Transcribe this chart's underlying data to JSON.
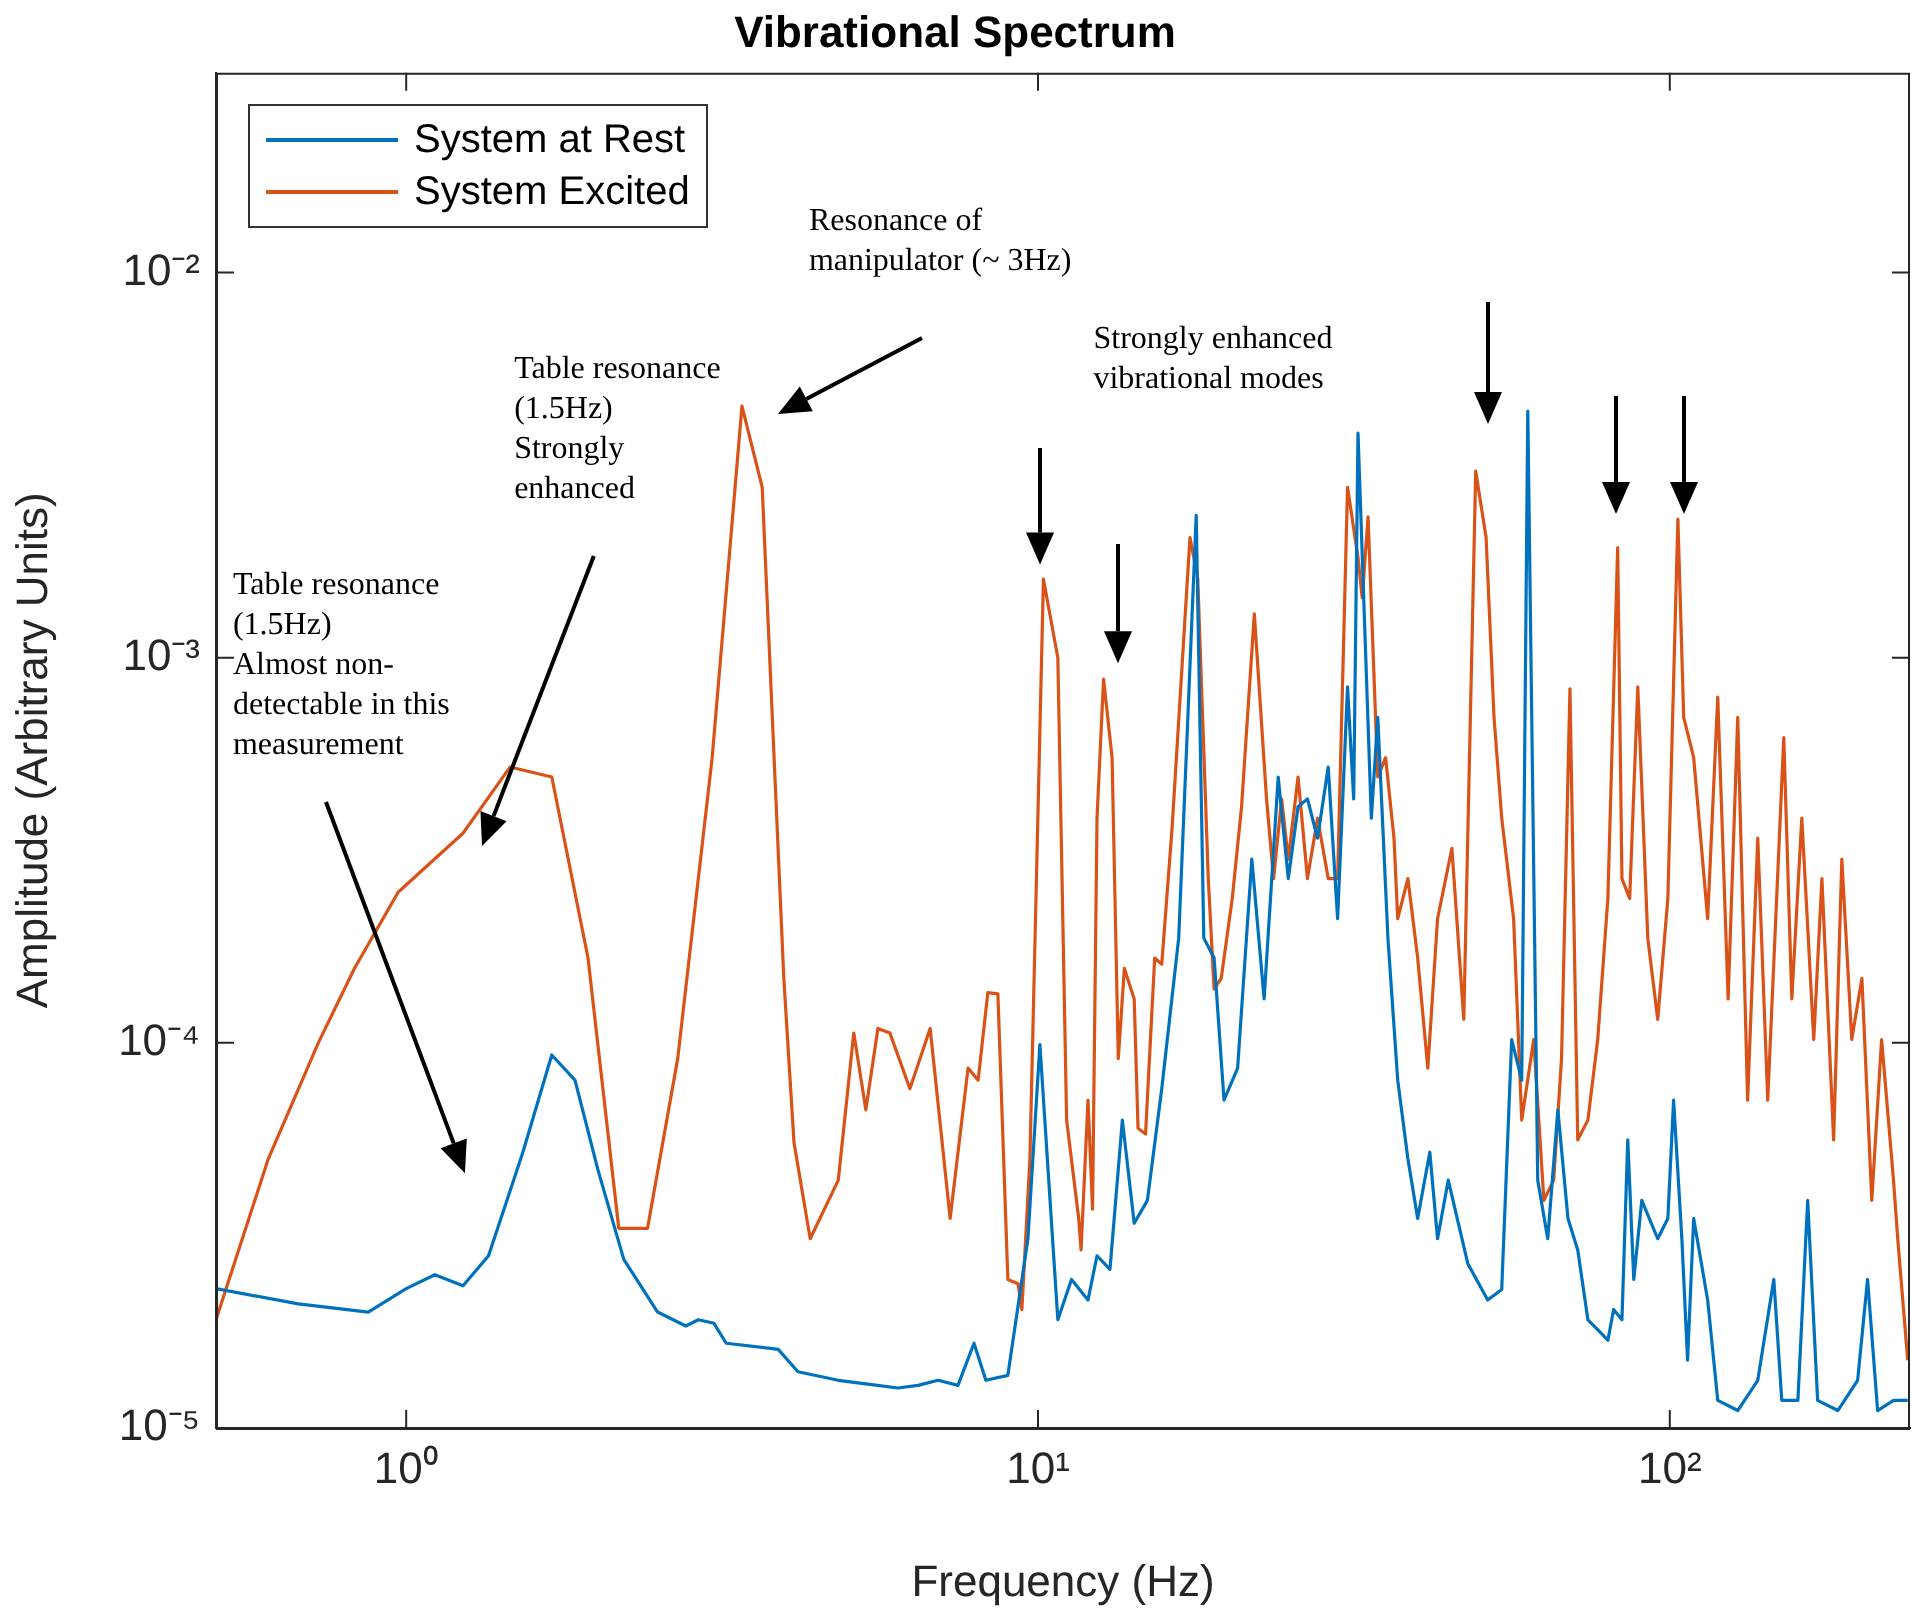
{
  "chart_data": {
    "type": "line",
    "title": "Vibrational Spectrum",
    "xlabel": "Frequency (Hz)",
    "ylabel": "Amplitude (Arbitrary Units)",
    "log": "xy",
    "grid": false,
    "legend": "top left",
    "marker": "none",
    "line_style": "solid",
    "xlim": [
      0.5,
      240
    ],
    "xticks": [
      {
        "value": 1,
        "label": "10⁰"
      },
      {
        "value": 10,
        "label": "10¹"
      },
      {
        "value": 100,
        "label": "10²"
      }
    ],
    "ylim": [
      1e-05,
      0.033
    ],
    "yticks": [
      {
        "value": 1e-05,
        "label": "10⁻⁵"
      },
      {
        "value": 0.0001,
        "label": "10⁻⁴"
      },
      {
        "value": 0.001,
        "label": "10⁻³"
      },
      {
        "value": 0.01,
        "label": "10⁻²"
      }
    ],
    "annotations": [
      "Table resonance\n(1.5Hz)\nAlmost non-\ndetectable in this\nmeasurement",
      "Table resonance\n(1.5Hz)\nStrongly\nenhanced",
      "Resonance of\nmanipulator (~ 3Hz)",
      "Strongly enhanced\nvibrational modes"
    ],
    "series": [
      {
        "name": "System at Rest",
        "color": "#0072bd",
        "x": [
          0.5,
          0.675,
          0.871,
          1.0,
          1.11,
          1.23,
          1.35,
          1.53,
          1.7,
          1.85,
          2.01,
          2.21,
          2.5,
          2.77,
          2.9,
          3.07,
          3.21,
          3.88,
          4.17,
          4.83,
          5.38,
          6.0,
          6.46,
          6.95,
          7.47,
          7.92,
          8.27,
          8.96,
          9.64,
          10.07,
          10.75,
          11.3,
          12.0,
          12.4,
          13.0,
          13.6,
          14.2,
          14.9,
          15.7,
          16.7,
          17.8,
          18.3,
          19.0,
          19.7,
          20.7,
          21.8,
          22.8,
          24.0,
          24.9,
          25.8,
          26.7,
          27.7,
          28.8,
          29.8,
          30.9,
          31.6,
          32.1,
          33.7,
          34.5,
          35.8,
          37.1,
          38.5,
          39.9,
          41.7,
          42.9,
          44.6,
          47.9,
          51.5,
          54.2,
          56.2,
          58.3,
          59.6,
          61.8,
          64.1,
          66.5,
          69.0,
          71.5,
          74.2,
          76.9,
          79.8,
          81.5,
          84.0,
          85.8,
          87.7,
          90.3,
          95.7,
          99.3,
          101.4,
          104.5,
          106.7,
          109.1,
          114.8,
          119.1,
          128.1,
          137.8,
          146.1,
          150.4,
          159.5,
          165.3,
          171.4,
          184.5,
          198.3,
          205.6,
          213.3,
          226,
          238
        ],
        "values": [
          2.3e-05,
          2.1e-05,
          2e-05,
          2.3e-05,
          2.5e-05,
          2.34e-05,
          2.8e-05,
          5.2e-05,
          9.3e-05,
          8e-05,
          4.7e-05,
          2.74e-05,
          2e-05,
          1.84e-05,
          1.91e-05,
          1.87e-05,
          1.66e-05,
          1.6e-05,
          1.4e-05,
          1.33e-05,
          1.3e-05,
          1.27e-05,
          1.29e-05,
          1.33e-05,
          1.29e-05,
          1.66e-05,
          1.33e-05,
          1.37e-05,
          3.1e-05,
          9.9e-05,
          1.91e-05,
          2.43e-05,
          2.15e-05,
          2.8e-05,
          2.58e-05,
          6.3e-05,
          3.4e-05,
          3.9e-05,
          7.6e-05,
          0.000187,
          0.00234,
          0.000187,
          0.000166,
          7.1e-05,
          8.6e-05,
          0.0003,
          0.00013,
          0.00049,
          0.000267,
          0.00041,
          0.00043,
          0.00034,
          0.00052,
          0.00021,
          0.00084,
          0.00043,
          0.00383,
          0.000383,
          0.0007,
          0.000187,
          8e-05,
          5e-05,
          3.5e-05,
          5.2e-05,
          3.1e-05,
          4.4e-05,
          2.67e-05,
          2.15e-05,
          2.29e-05,
          0.000102,
          8e-05,
          0.00437,
          4.4e-05,
          3.1e-05,
          6.7e-05,
          3.5e-05,
          2.9e-05,
          1.91e-05,
          1.8e-05,
          1.69e-05,
          2.03e-05,
          1.91e-05,
          5.6e-05,
          2.43e-05,
          3.9e-05,
          3.1e-05,
          3.5e-05,
          7.1e-05,
          3.1e-05,
          1.5e-05,
          3.5e-05,
          2.15e-05,
          1.18e-05,
          1.11e-05,
          1.33e-05,
          2.43e-05,
          1.18e-05,
          1.18e-05,
          3.9e-05,
          1.18e-05,
          1.11e-05,
          1.33e-05,
          2.43e-05,
          1.11e-05,
          1.18e-05,
          1.18e-05
        ]
      },
      {
        "name": "System Excited",
        "color": "#d95319",
        "x": [
          0.5,
          0.605,
          0.726,
          0.828,
          0.971,
          1.23,
          1.46,
          1.7,
          1.94,
          2.17,
          2.41,
          2.69,
          3.05,
          3.4,
          3.66,
          3.96,
          4.11,
          4.36,
          4.83,
          5.11,
          5.34,
          5.58,
          5.83,
          6.27,
          6.75,
          7.26,
          7.75,
          8.04,
          8.33,
          8.64,
          8.96,
          9.3,
          9.43,
          9.71,
          10.2,
          10.75,
          11.1,
          11.6,
          11.7,
          12.0,
          12.2,
          12.4,
          12.7,
          13.1,
          13.4,
          13.7,
          14.2,
          14.4,
          14.8,
          15.3,
          15.7,
          16.3,
          17.4,
          17.9,
          18.6,
          19.0,
          19.5,
          20.3,
          21.0,
          22.0,
          23.0,
          23.6,
          24.3,
          24.9,
          25.8,
          26.7,
          27.7,
          28.8,
          29.8,
          30.9,
          32.1,
          32.6,
          33.3,
          34.5,
          35.5,
          36.6,
          37.1,
          38.5,
          39.9,
          41.4,
          42.9,
          45.2,
          47.2,
          49.3,
          51.2,
          52.7,
          54.2,
          56.6,
          58.3,
          59.6,
          60.9,
          63.2,
          65.5,
          67.4,
          69.5,
          71.5,
          74.2,
          76.9,
          79.8,
          82.7,
          84.0,
          86.4,
          89.0,
          92.3,
          95.7,
          99.3,
          103,
          105.2,
          109.1,
          114.8,
          119.1,
          123.7,
          128.1,
          132.8,
          137.8,
          142.9,
          151.5,
          156.0,
          161.8,
          169.0,
          174.1,
          181.7,
          187.2,
          194.1,
          201.4,
          208.8,
          216.4,
          226,
          229.5,
          238
        ],
        "values": [
          1.91e-05,
          5e-05,
          0.0001,
          0.000156,
          0.000246,
          0.00035,
          0.00052,
          0.00049,
          0.000166,
          3.3e-05,
          3.3e-05,
          9.1e-05,
          0.00055,
          0.0045,
          0.00277,
          0.000147,
          5.5e-05,
          3.1e-05,
          4.4e-05,
          0.000106,
          6.7e-05,
          0.000109,
          0.000106,
          7.6e-05,
          0.000109,
          3.5e-05,
          8.6e-05,
          8e-05,
          0.000135,
          0.000134,
          2.43e-05,
          2.37e-05,
          2.03e-05,
          5e-05,
          0.0016,
          0.001,
          6.3e-05,
          3.5e-05,
          2.9e-05,
          7.1e-05,
          3.7e-05,
          0.000383,
          0.00088,
          0.00055,
          9.1e-05,
          0.000156,
          0.00013,
          6e-05,
          5.8e-05,
          0.000166,
          0.00016,
          0.00036,
          0.00205,
          0.00161,
          0.000267,
          0.000138,
          0.000147,
          0.000237,
          0.00041,
          0.0013,
          0.00043,
          0.000267,
          0.00043,
          0.0003,
          0.00049,
          0.000267,
          0.000383,
          0.000267,
          0.000267,
          0.00277,
          0.00182,
          0.00143,
          0.00232,
          0.00049,
          0.00055,
          0.00034,
          0.00021,
          0.000267,
          0.000166,
          8.6e-05,
          0.00021,
          0.00032,
          0.000115,
          0.00305,
          0.00205,
          0.0007,
          0.000383,
          0.00021,
          6.3e-05,
          null,
          0.000102,
          3.9e-05,
          4.4e-05,
          9.1e-05,
          0.00083,
          5.6e-05,
          6.3e-05,
          0.000102,
          0.000237,
          0.00193,
          0.000267,
          0.000237,
          0.00084,
          0.000187,
          0.000115,
          0.000237,
          0.00229,
          0.0007,
          0.00055,
          0.00021,
          0.00079,
          0.00013,
          0.0007,
          7.1e-05,
          0.00034,
          7.1e-05,
          0.00062,
          0.00013,
          0.000383,
          0.000102,
          0.000267,
          5.6e-05,
          0.0003,
          0.000102,
          0.000147,
          3.9e-05,
          0.000102,
          4.4e-05,
          3.1e-05,
          1.5e-05
        ]
      }
    ]
  }
}
